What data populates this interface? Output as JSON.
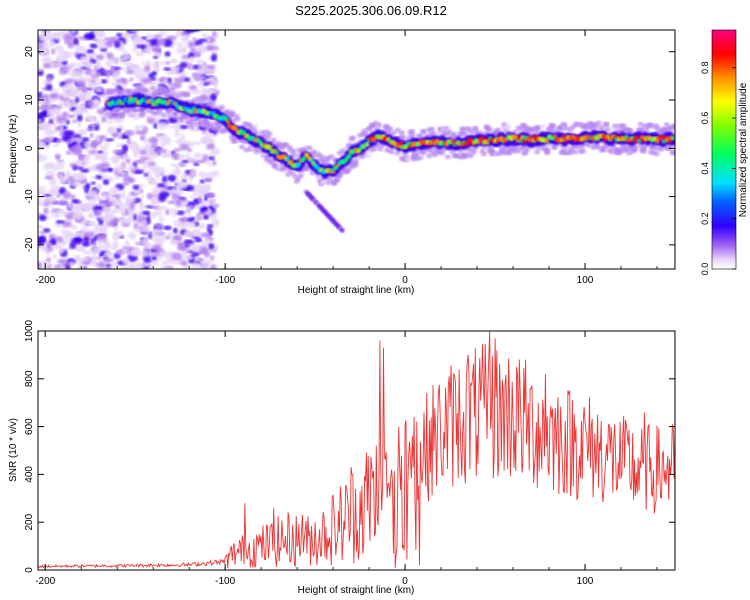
{
  "title": "S225.2025.306.06.09.R12",
  "chart_data": [
    {
      "type": "heatmap",
      "xlabel": "Height of straight line (km)",
      "ylabel": "Frequency (Hz)",
      "xlim": [
        -204,
        150
      ],
      "ylim": [
        -25,
        24.5
      ],
      "xticks": [
        -200,
        -100,
        0,
        100
      ],
      "yticks": [
        -20,
        -10,
        0,
        10,
        20
      ],
      "colorbar": {
        "label": "Normalized spectral amplitude",
        "range": [
          0,
          0.95
        ],
        "ticks": [
          0.0,
          0.2,
          0.4,
          0.6,
          0.8
        ],
        "tick_labels": [
          "0.0",
          "0.2",
          "0.4",
          "0.6",
          "0.8"
        ]
      },
      "ridge": {
        "x": [
          -165,
          -160,
          -150,
          -140,
          -130,
          -120,
          -110,
          -100,
          -95,
          -90,
          -85,
          -80,
          -75,
          -70,
          -65,
          -60,
          -55,
          -50,
          -45,
          -40,
          -35,
          -30,
          -25,
          -20,
          -15,
          -10,
          -5,
          0,
          10,
          20,
          30,
          40,
          50,
          60,
          70,
          80,
          90,
          100,
          110,
          120,
          130,
          140,
          150
        ],
        "y": [
          9,
          9.5,
          10,
          9.5,
          9.5,
          8,
          7.5,
          6,
          4,
          3,
          2,
          1,
          0,
          -1.5,
          -2.5,
          -4,
          -1.5,
          -3.5,
          -5,
          -4.5,
          -3,
          -1,
          0,
          1.5,
          2.5,
          2,
          1,
          0.5,
          1,
          1.2,
          1,
          1.5,
          1.8,
          2,
          1.8,
          2,
          2,
          2.2,
          2.2,
          2,
          2,
          1.8,
          2
        ]
      },
      "tail": {
        "x": [
          -55,
          -45,
          -35
        ],
        "y": [
          -9,
          -13,
          -17
        ]
      },
      "scatter_region": {
        "x": [
          -204,
          -105
        ],
        "y": [
          -25,
          24.5
        ]
      }
    },
    {
      "type": "line",
      "xlabel": "Height of straight line (km)",
      "ylabel": "SNR (10 * v/v)",
      "xlim": [
        -204,
        150
      ],
      "ylim": [
        0,
        1000
      ],
      "xticks": [
        -200,
        -100,
        0,
        100
      ],
      "yticks": [
        0,
        200,
        400,
        600,
        800,
        1000
      ],
      "color": "#ee3333",
      "trend": {
        "x": [
          -204,
          -160,
          -120,
          -100,
          -95,
          -85,
          -75,
          -65,
          -55,
          -45,
          -35,
          -25,
          -15,
          -10,
          0,
          10,
          20,
          30,
          40,
          50,
          60,
          70,
          80,
          90,
          100,
          110,
          120,
          130,
          140,
          150
        ],
        "y": [
          15,
          18,
          22,
          35,
          70,
          90,
          110,
          130,
          120,
          150,
          200,
          260,
          330,
          380,
          440,
          500,
          580,
          630,
          650,
          660,
          650,
          600,
          570,
          540,
          520,
          490,
          450,
          430,
          420,
          430
        ]
      },
      "spikes": {
        "x": [
          -89,
          -73,
          -57,
          -30,
          -14,
          -12,
          0,
          35,
          47,
          50,
          62,
          78,
          128,
          133
        ],
        "y": [
          280,
          260,
          230,
          430,
          960,
          930,
          610,
          900,
          1000,
          970,
          850,
          820,
          310,
          660
        ]
      }
    }
  ]
}
